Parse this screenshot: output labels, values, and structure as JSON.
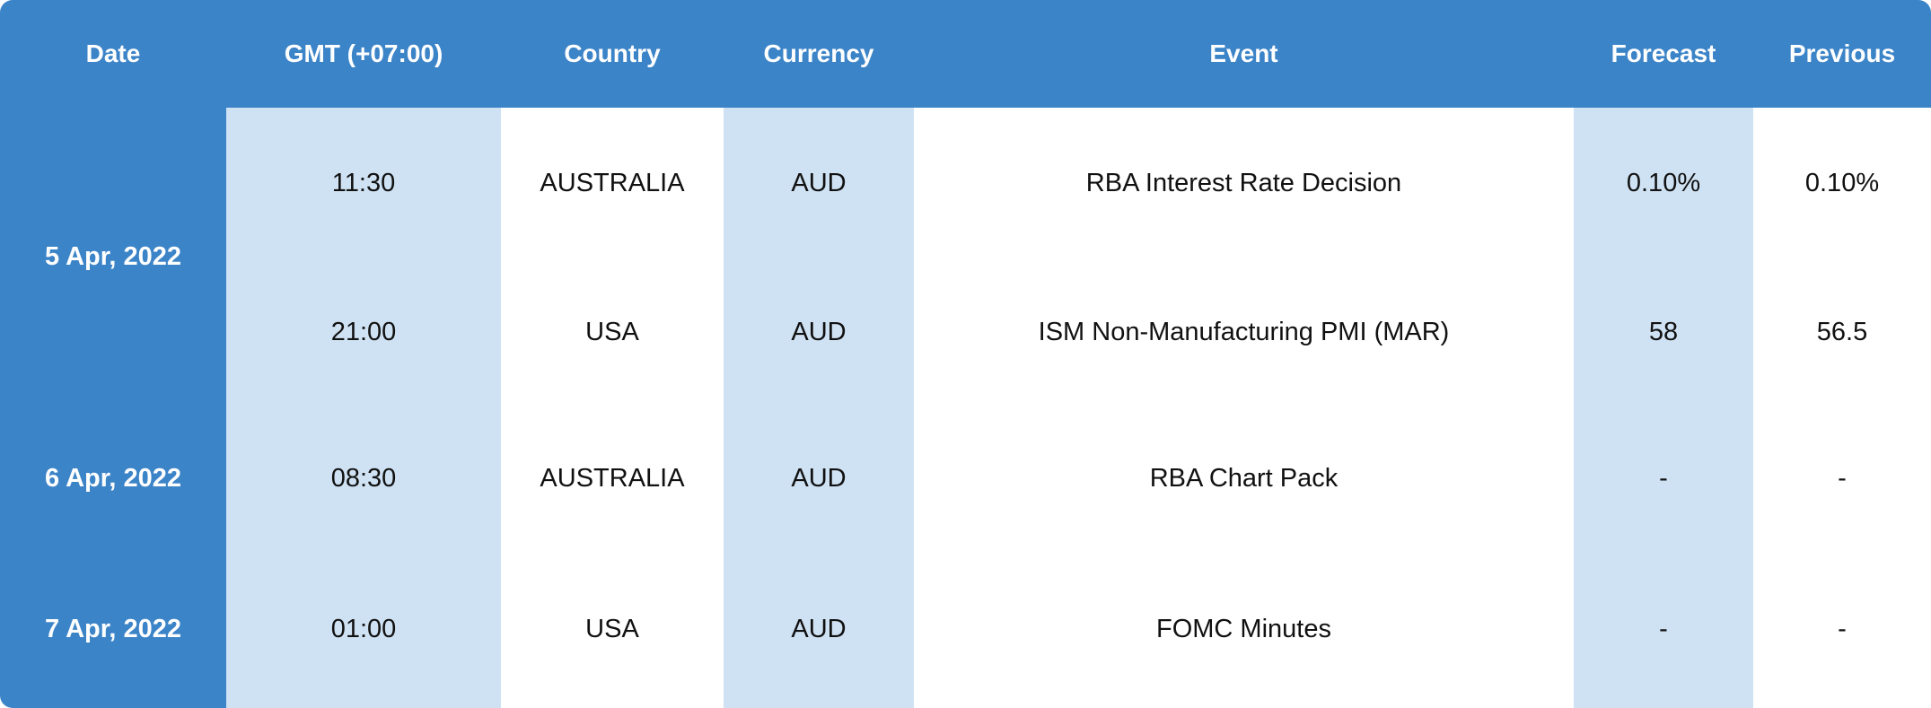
{
  "headers": {
    "date": "Date",
    "gmt": "GMT (+07:00)",
    "country": "Country",
    "currency": "Currency",
    "event": "Event",
    "forecast": "Forecast",
    "previous": "Previous"
  },
  "dates": [
    "5 Apr, 2022",
    "6 Apr, 2022",
    "7 Apr, 2022"
  ],
  "rows": [
    {
      "time": "11:30",
      "country": "AUSTRALIA",
      "currency": "AUD",
      "event": "RBA Interest Rate Decision",
      "forecast": "0.10%",
      "previous": "0.10%"
    },
    {
      "time": "21:00",
      "country": "USA",
      "currency": "AUD",
      "event": "ISM Non-Manufacturing PMI (MAR)",
      "forecast": "58",
      "previous": "56.5"
    },
    {
      "time": "08:30",
      "country": "AUSTRALIA",
      "currency": "AUD",
      "event": "RBA Chart Pack",
      "forecast": "-",
      "previous": "-"
    },
    {
      "time": "01:00",
      "country": "USA",
      "currency": "AUD",
      "event": "FOMC Minutes",
      "forecast": "-",
      "previous": "-"
    }
  ],
  "colors": {
    "header_bg": "#3c84c8",
    "shade_bg": "#cfe2f3",
    "text": "#111111"
  }
}
